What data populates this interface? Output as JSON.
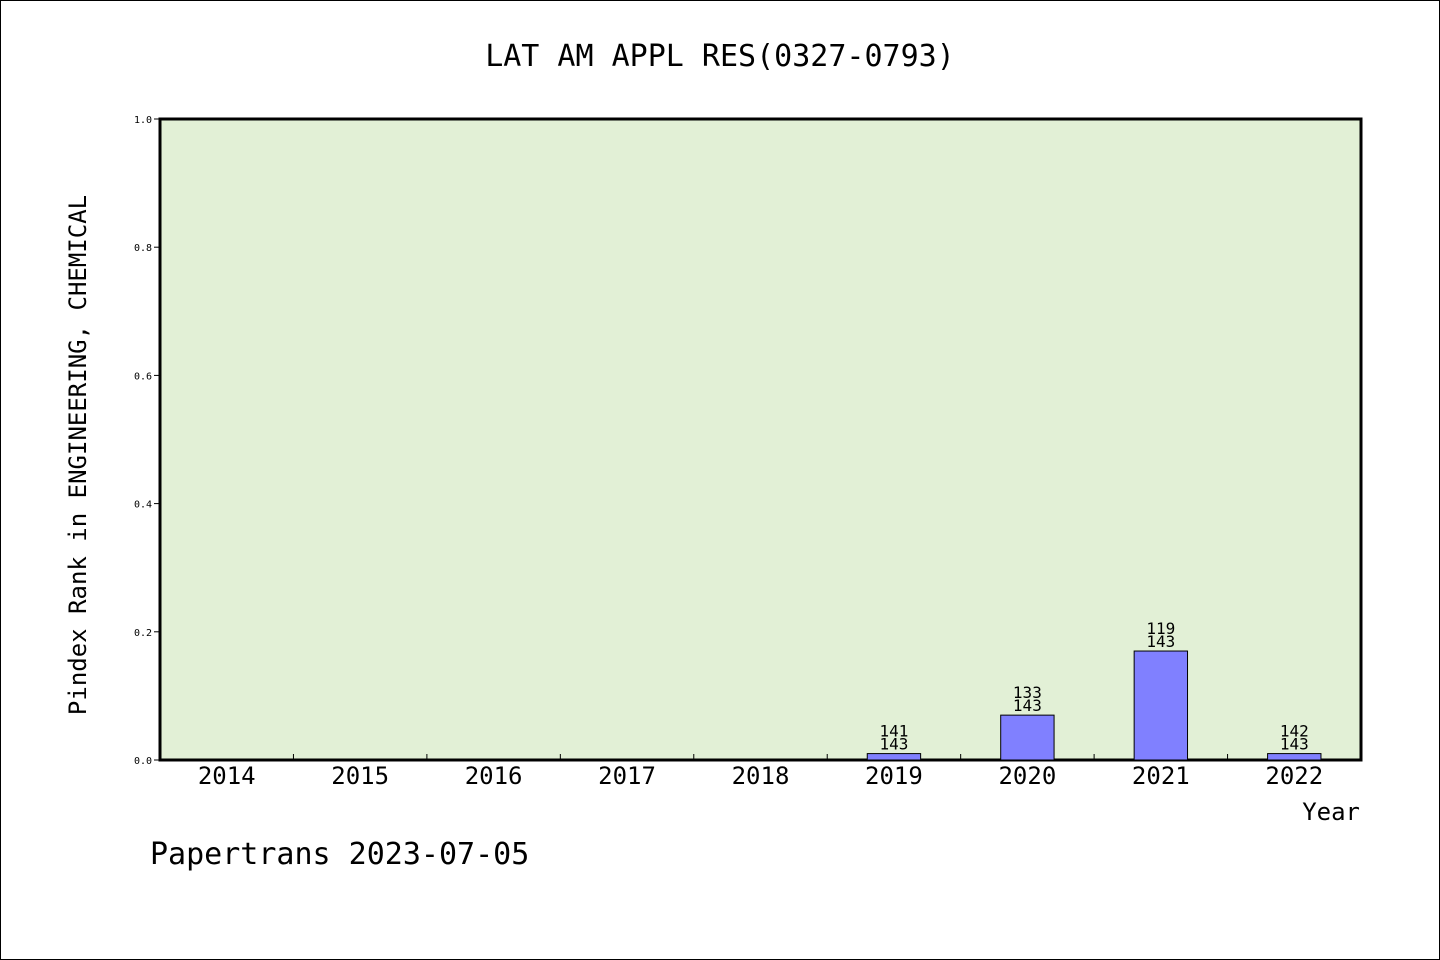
{
  "chart_data": {
    "type": "bar",
    "title": "LAT AM APPL RES(0327-0793)",
    "xlabel": "Year",
    "ylabel": "Pindex Rank in ENGINEERING, CHEMICAL",
    "ylim": [
      0,
      1.0
    ],
    "yticks": [
      "0.0",
      "0.2",
      "0.4",
      "0.6",
      "0.8",
      "1.0"
    ],
    "categories": [
      "2014",
      "2015",
      "2016",
      "2017",
      "2018",
      "2019",
      "2020",
      "2021",
      "2022"
    ],
    "values": [
      null,
      null,
      null,
      null,
      null,
      0.01,
      0.07,
      0.17,
      0.01
    ],
    "rank": [
      null,
      null,
      null,
      null,
      null,
      "141",
      "133",
      "119",
      "142"
    ],
    "total": [
      null,
      null,
      null,
      null,
      null,
      "143",
      "143",
      "143",
      "143"
    ],
    "grid": false,
    "colors": {
      "plot_background": "#e2f0d6",
      "bar_fill": "#8080ff",
      "axis": "#000000"
    }
  },
  "footer": "Papertrans 2023-07-05"
}
